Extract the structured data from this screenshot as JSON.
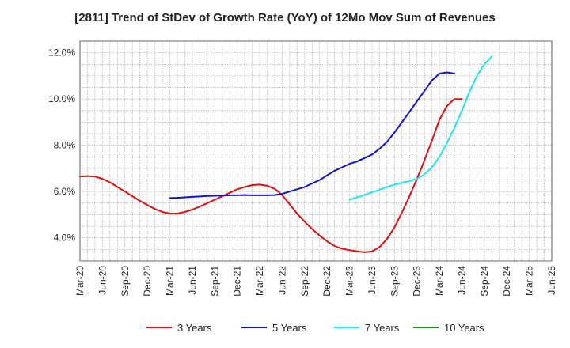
{
  "chart_data": {
    "type": "line",
    "title": "[2811]  Trend of StDev of Growth Rate (YoY) of 12Mo Mov Sum of Revenues",
    "xlabel": "",
    "ylabel": "",
    "ylim": [
      3.0,
      12.5
    ],
    "y_ticks": [
      4.0,
      6.0,
      8.0,
      10.0,
      12.0
    ],
    "y_tick_labels": [
      "4.0%",
      "6.0%",
      "8.0%",
      "10.0%",
      "12.0%"
    ],
    "x_tick_labels": [
      "Mar-20",
      "Jun-20",
      "Sep-20",
      "Dec-20",
      "Mar-21",
      "Jun-21",
      "Sep-21",
      "Dec-21",
      "Mar-22",
      "Jun-22",
      "Sep-22",
      "Dec-22",
      "Mar-23",
      "Jun-23",
      "Sep-23",
      "Dec-23",
      "Mar-24",
      "Jun-24",
      "Sep-24",
      "Dec-24",
      "Mar-25",
      "Jun-25"
    ],
    "x_range": [
      0,
      63
    ],
    "grid": true,
    "legend_position": "bottom",
    "series": [
      {
        "name": "3 Years",
        "color": "#dd1111",
        "points": [
          [
            0,
            6.65
          ],
          [
            1,
            6.67
          ],
          [
            2,
            6.65
          ],
          [
            3,
            6.55
          ],
          [
            4,
            6.4
          ],
          [
            5,
            6.2
          ],
          [
            6,
            6.0
          ],
          [
            7,
            5.8
          ],
          [
            8,
            5.6
          ],
          [
            9,
            5.42
          ],
          [
            10,
            5.25
          ],
          [
            11,
            5.12
          ],
          [
            12,
            5.05
          ],
          [
            13,
            5.05
          ],
          [
            14,
            5.12
          ],
          [
            15,
            5.22
          ],
          [
            16,
            5.35
          ],
          [
            17,
            5.5
          ],
          [
            18,
            5.65
          ],
          [
            19,
            5.8
          ],
          [
            20,
            5.95
          ],
          [
            21,
            6.1
          ],
          [
            22,
            6.2
          ],
          [
            23,
            6.28
          ],
          [
            24,
            6.3
          ],
          [
            25,
            6.25
          ],
          [
            26,
            6.12
          ],
          [
            27,
            5.85
          ],
          [
            28,
            5.45
          ],
          [
            29,
            5.05
          ],
          [
            30,
            4.7
          ],
          [
            31,
            4.38
          ],
          [
            32,
            4.1
          ],
          [
            33,
            3.85
          ],
          [
            34,
            3.65
          ],
          [
            35,
            3.53
          ],
          [
            36,
            3.47
          ],
          [
            37,
            3.42
          ],
          [
            38,
            3.38
          ],
          [
            39,
            3.42
          ],
          [
            40,
            3.6
          ],
          [
            41,
            3.95
          ],
          [
            42,
            4.45
          ],
          [
            43,
            5.1
          ],
          [
            44,
            5.8
          ],
          [
            45,
            6.55
          ],
          [
            46,
            7.35
          ],
          [
            47,
            8.2
          ],
          [
            48,
            9.1
          ],
          [
            49,
            9.7
          ],
          [
            50,
            10.0
          ],
          [
            51,
            10.0
          ]
        ]
      },
      {
        "name": "5 Years",
        "color": "#1111cc",
        "points": [
          [
            12,
            5.72
          ],
          [
            13,
            5.73
          ],
          [
            14,
            5.75
          ],
          [
            15,
            5.77
          ],
          [
            16,
            5.79
          ],
          [
            17,
            5.81
          ],
          [
            18,
            5.82
          ],
          [
            19,
            5.83
          ],
          [
            20,
            5.84
          ],
          [
            21,
            5.84
          ],
          [
            22,
            5.85
          ],
          [
            23,
            5.84
          ],
          [
            24,
            5.84
          ],
          [
            25,
            5.84
          ],
          [
            26,
            5.85
          ],
          [
            27,
            5.9
          ],
          [
            28,
            6.0
          ],
          [
            29,
            6.1
          ],
          [
            30,
            6.2
          ],
          [
            31,
            6.35
          ],
          [
            32,
            6.5
          ],
          [
            33,
            6.7
          ],
          [
            34,
            6.9
          ],
          [
            35,
            7.05
          ],
          [
            36,
            7.2
          ],
          [
            37,
            7.3
          ],
          [
            38,
            7.45
          ],
          [
            39,
            7.6
          ],
          [
            40,
            7.85
          ],
          [
            41,
            8.15
          ],
          [
            42,
            8.55
          ],
          [
            43,
            9.0
          ],
          [
            44,
            9.45
          ],
          [
            45,
            9.9
          ],
          [
            46,
            10.35
          ],
          [
            47,
            10.8
          ],
          [
            48,
            11.1
          ],
          [
            49,
            11.15
          ],
          [
            50,
            11.1
          ]
        ]
      },
      {
        "name": "7 Years",
        "color": "#22e5f0",
        "points": [
          [
            36,
            5.65
          ],
          [
            37,
            5.75
          ],
          [
            38,
            5.85
          ],
          [
            39,
            5.97
          ],
          [
            40,
            6.08
          ],
          [
            41,
            6.2
          ],
          [
            42,
            6.3
          ],
          [
            43,
            6.38
          ],
          [
            44,
            6.45
          ],
          [
            45,
            6.55
          ],
          [
            46,
            6.75
          ],
          [
            47,
            7.05
          ],
          [
            48,
            7.5
          ],
          [
            49,
            8.1
          ],
          [
            50,
            8.75
          ],
          [
            51,
            9.5
          ],
          [
            52,
            10.3
          ],
          [
            53,
            11.0
          ],
          [
            54,
            11.5
          ],
          [
            55,
            11.85
          ]
        ]
      },
      {
        "name": "10 Years",
        "color": "#228822",
        "points": []
      }
    ]
  }
}
